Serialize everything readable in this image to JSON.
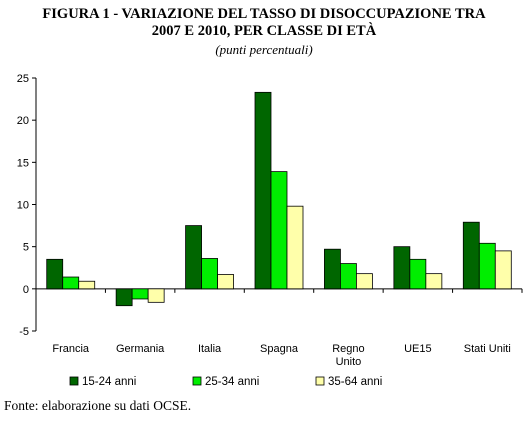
{
  "title_line1": "FIGURA 1 - VARIAZIONE DEL TASSO DI DISOCCUPAZIONE TRA",
  "title_line2": "2007 E 2010, PER CLASSE DI ETÀ",
  "subtitle": "(punti percentuali)",
  "source": "Fonte: elaborazione su dati OCSE.",
  "chart_data": {
    "type": "bar",
    "categories": [
      "Francia",
      "Germania",
      "Italia",
      "Spagna",
      "Regno Unito",
      "UE15",
      "Stati Uniti"
    ],
    "category_lines": [
      [
        "Francia"
      ],
      [
        "Germania"
      ],
      [
        "Italia"
      ],
      [
        "Spagna"
      ],
      [
        "Regno",
        "Unito"
      ],
      [
        "UE15"
      ],
      [
        "Stati Uniti"
      ]
    ],
    "series": [
      {
        "name": "15-24 anni",
        "color": "#006600",
        "values": [
          3.5,
          -2.0,
          7.5,
          23.3,
          4.7,
          5.0,
          7.9
        ]
      },
      {
        "name": "25-34 anni",
        "color": "#00ee00",
        "values": [
          1.4,
          -1.2,
          3.6,
          13.9,
          3.0,
          3.5,
          5.4
        ]
      },
      {
        "name": "35-64 anni",
        "color": "#ffffaa",
        "values": [
          0.9,
          -1.6,
          1.7,
          9.8,
          1.8,
          1.8,
          4.5
        ]
      }
    ],
    "ylim": [
      -5,
      25
    ],
    "yticks": [
      "-5",
      "0",
      "5",
      "10",
      "15",
      "20",
      "25"
    ],
    "grid": false,
    "legend": "bottom"
  }
}
